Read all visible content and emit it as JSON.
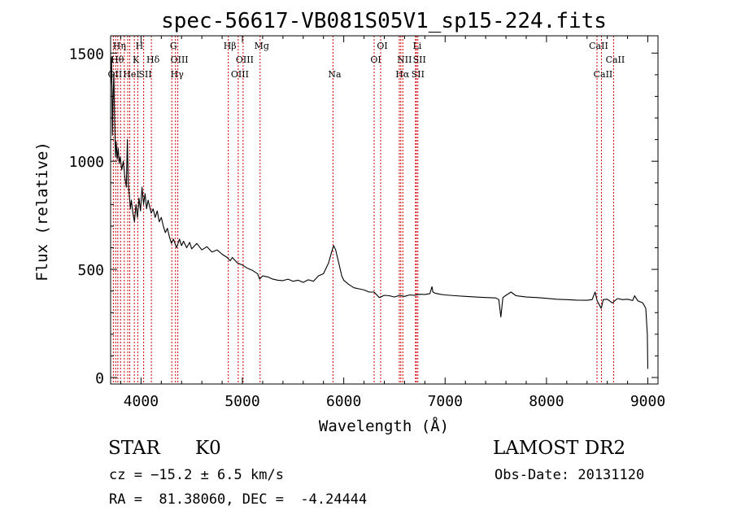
{
  "chart_data": {
    "type": "line",
    "title": "spec-56617-VB081S05V1_sp15-224.fits",
    "xlabel": "Wavelength (Å)",
    "ylabel": "Flux (relative)",
    "xlim": [
      3700,
      9100
    ],
    "ylim": [
      -30,
      1580
    ],
    "xticks": [
      4000,
      5000,
      6000,
      7000,
      8000,
      9000
    ],
    "yticks": [
      0,
      500,
      1000,
      1500
    ],
    "grid": false,
    "line_color": "#000000",
    "marker_color": "#cc0000",
    "spectrum_points": [
      [
        3700,
        1350
      ],
      [
        3710,
        1480
      ],
      [
        3718,
        1120
      ],
      [
        3725,
        1310
      ],
      [
        3732,
        1400
      ],
      [
        3740,
        1180
      ],
      [
        3748,
        1020
      ],
      [
        3755,
        1090
      ],
      [
        3765,
        1010
      ],
      [
        3775,
        1060
      ],
      [
        3785,
        990
      ],
      [
        3795,
        1020
      ],
      [
        3810,
        960
      ],
      [
        3825,
        1000
      ],
      [
        3840,
        930
      ],
      [
        3855,
        880
      ],
      [
        3865,
        1100
      ],
      [
        3875,
        890
      ],
      [
        3885,
        840
      ],
      [
        3895,
        780
      ],
      [
        3905,
        820
      ],
      [
        3920,
        760
      ],
      [
        3935,
        720
      ],
      [
        3950,
        800
      ],
      [
        3965,
        740
      ],
      [
        3980,
        830
      ],
      [
        3995,
        770
      ],
      [
        4010,
        880
      ],
      [
        4025,
        800
      ],
      [
        4040,
        850
      ],
      [
        4055,
        780
      ],
      [
        4070,
        820
      ],
      [
        4085,
        790
      ],
      [
        4100,
        760
      ],
      [
        4120,
        780
      ],
      [
        4140,
        740
      ],
      [
        4160,
        770
      ],
      [
        4180,
        720
      ],
      [
        4200,
        740
      ],
      [
        4220,
        700
      ],
      [
        4240,
        670
      ],
      [
        4260,
        690
      ],
      [
        4280,
        650
      ],
      [
        4300,
        620
      ],
      [
        4320,
        640
      ],
      [
        4350,
        600
      ],
      [
        4380,
        640
      ],
      [
        4400,
        610
      ],
      [
        4420,
        630
      ],
      [
        4450,
        600
      ],
      [
        4480,
        625
      ],
      [
        4500,
        595
      ],
      [
        4550,
        620
      ],
      [
        4600,
        590
      ],
      [
        4650,
        605
      ],
      [
        4700,
        580
      ],
      [
        4750,
        590
      ],
      [
        4800,
        570
      ],
      [
        4850,
        555
      ],
      [
        4880,
        540
      ],
      [
        4900,
        555
      ],
      [
        4950,
        530
      ],
      [
        5000,
        520
      ],
      [
        5050,
        505
      ],
      [
        5100,
        495
      ],
      [
        5150,
        480
      ],
      [
        5170,
        455
      ],
      [
        5200,
        470
      ],
      [
        5250,
        465
      ],
      [
        5300,
        455
      ],
      [
        5350,
        450
      ],
      [
        5400,
        448
      ],
      [
        5450,
        455
      ],
      [
        5500,
        445
      ],
      [
        5550,
        450
      ],
      [
        5600,
        440
      ],
      [
        5650,
        452
      ],
      [
        5700,
        445
      ],
      [
        5750,
        470
      ],
      [
        5800,
        480
      ],
      [
        5850,
        530
      ],
      [
        5880,
        580
      ],
      [
        5900,
        610
      ],
      [
        5920,
        590
      ],
      [
        5940,
        550
      ],
      [
        5960,
        510
      ],
      [
        5980,
        470
      ],
      [
        6000,
        450
      ],
      [
        6050,
        430
      ],
      [
        6100,
        415
      ],
      [
        6150,
        410
      ],
      [
        6200,
        405
      ],
      [
        6250,
        395
      ],
      [
        6300,
        395
      ],
      [
        6350,
        370
      ],
      [
        6400,
        380
      ],
      [
        6450,
        378
      ],
      [
        6500,
        372
      ],
      [
        6550,
        380
      ],
      [
        6600,
        375
      ],
      [
        6650,
        382
      ],
      [
        6700,
        380
      ],
      [
        6750,
        385
      ],
      [
        6800,
        384
      ],
      [
        6850,
        388
      ],
      [
        6870,
        420
      ],
      [
        6880,
        395
      ],
      [
        6900,
        390
      ],
      [
        6950,
        385
      ],
      [
        7000,
        382
      ],
      [
        7100,
        378
      ],
      [
        7200,
        375
      ],
      [
        7300,
        372
      ],
      [
        7400,
        370
      ],
      [
        7500,
        368
      ],
      [
        7530,
        360
      ],
      [
        7550,
        280
      ],
      [
        7570,
        370
      ],
      [
        7600,
        380
      ],
      [
        7650,
        395
      ],
      [
        7700,
        378
      ],
      [
        7800,
        372
      ],
      [
        7900,
        370
      ],
      [
        8000,
        366
      ],
      [
        8100,
        362
      ],
      [
        8200,
        360
      ],
      [
        8300,
        358
      ],
      [
        8400,
        357
      ],
      [
        8450,
        360
      ],
      [
        8480,
        395
      ],
      [
        8500,
        355
      ],
      [
        8540,
        320
      ],
      [
        8560,
        360
      ],
      [
        8600,
        362
      ],
      [
        8650,
        345
      ],
      [
        8700,
        365
      ],
      [
        8750,
        360
      ],
      [
        8800,
        362
      ],
      [
        8850,
        356
      ],
      [
        8870,
        378
      ],
      [
        8900,
        355
      ],
      [
        8950,
        345
      ],
      [
        8980,
        320
      ],
      [
        8995,
        200
      ],
      [
        9000,
        40
      ]
    ],
    "line_markers": [
      {
        "wl": 3727,
        "label": "OII",
        "row": 2
      },
      {
        "wl": 3750,
        "label": "Hθ",
        "row": 1
      },
      {
        "wl": 3771,
        "label": "Hη",
        "row": 0
      },
      {
        "wl": 3798,
        "label": "",
        "row": -1
      },
      {
        "wl": 3835,
        "label": "",
        "row": -1
      },
      {
        "wl": 3869,
        "label": "",
        "row": -1
      },
      {
        "wl": 3889,
        "label": "HeI",
        "row": 2
      },
      {
        "wl": 3934,
        "label": "K",
        "row": 1
      },
      {
        "wl": 3968,
        "label": "H",
        "row": 0
      },
      {
        "wl": 4026,
        "label": "SII",
        "row": 2
      },
      {
        "wl": 4102,
        "label": "Hδ",
        "row": 1
      },
      {
        "wl": 4304,
        "label": "G",
        "row": 0
      },
      {
        "wl": 4340,
        "label": "Hγ",
        "row": 2
      },
      {
        "wl": 4363,
        "label": "OIII",
        "row": 1
      },
      {
        "wl": 4861,
        "label": "Hβ",
        "row": 0
      },
      {
        "wl": 4959,
        "label": "OIII",
        "row": 2
      },
      {
        "wl": 5007,
        "label": "OIII",
        "row": 1
      },
      {
        "wl": 5175,
        "label": "Mg",
        "row": 0
      },
      {
        "wl": 5894,
        "label": "Na",
        "row": 2
      },
      {
        "wl": 6300,
        "label": "OI",
        "row": 1
      },
      {
        "wl": 6364,
        "label": "OI",
        "row": 0
      },
      {
        "wl": 6548,
        "label": "",
        "row": -1
      },
      {
        "wl": 6563,
        "label": "Hα",
        "row": 2
      },
      {
        "wl": 6583,
        "label": "NII",
        "row": 1
      },
      {
        "wl": 6708,
        "label": "Li",
        "row": 0
      },
      {
        "wl": 6716,
        "label": "SII",
        "row": 2
      },
      {
        "wl": 6731,
        "label": "SII",
        "row": 1
      },
      {
        "wl": 8498,
        "label": "CaII",
        "row": 0
      },
      {
        "wl": 8542,
        "label": "CaII",
        "row": 2
      },
      {
        "wl": 8662,
        "label": "CaII",
        "row": 1
      }
    ]
  },
  "info": {
    "object_type": "STAR",
    "object_class": "K0",
    "survey": "LAMOST DR2",
    "cz": "cz = −15.2 ± 6.5 km/s",
    "obs_date": "Obs-Date: 20131120",
    "ra_dec": "RA =  81.38060, DEC =  -4.24444"
  }
}
